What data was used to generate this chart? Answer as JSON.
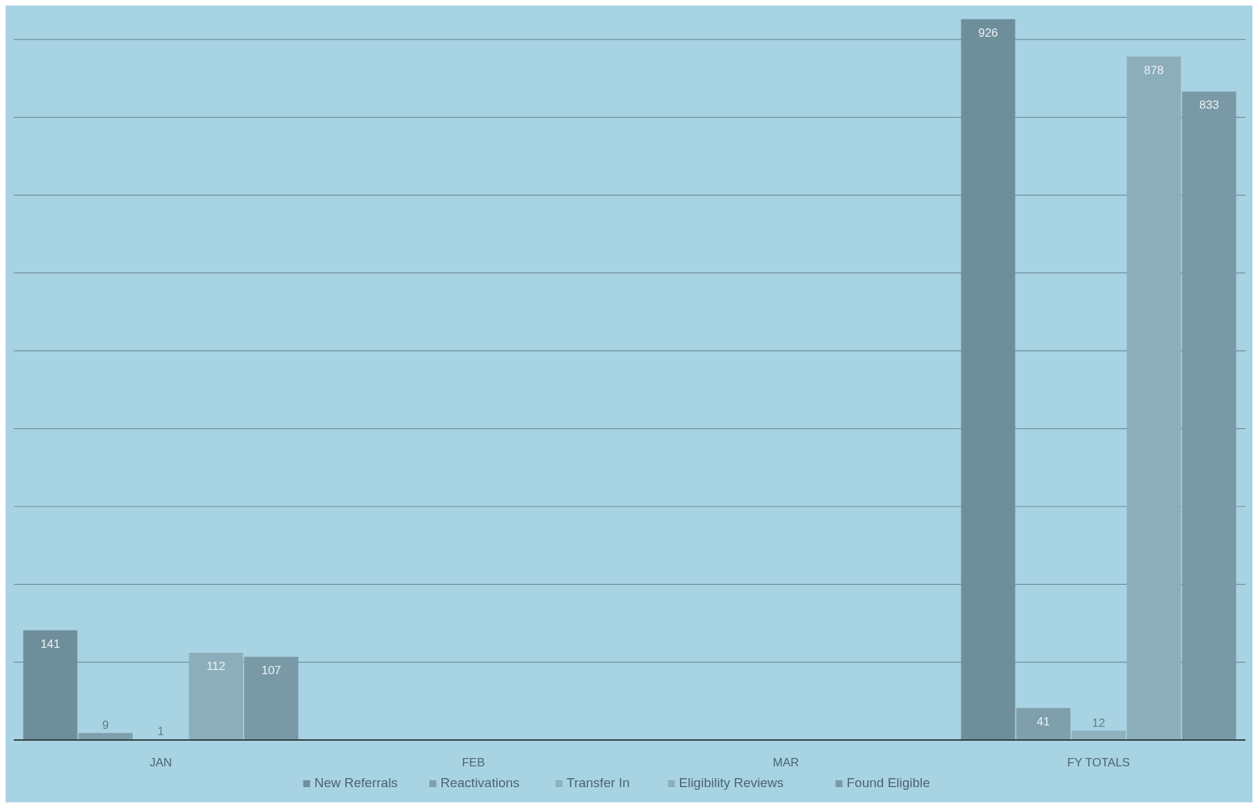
{
  "chart_data": {
    "type": "bar",
    "categories": [
      "JAN",
      "FEB",
      "MAR",
      "FY TOTALS"
    ],
    "series": [
      {
        "name": "New Referrals",
        "color": "#6f8e9b",
        "values": [
          141,
          null,
          null,
          926
        ]
      },
      {
        "name": "Reactivations",
        "color": "#7f9fac",
        "values": [
          9,
          null,
          null,
          41
        ]
      },
      {
        "name": "Transfer In",
        "color": "#8fb1be",
        "values": [
          1,
          null,
          null,
          12
        ]
      },
      {
        "name": "Eligibility Reviews",
        "color": "#8cadba",
        "values": [
          112,
          null,
          null,
          878
        ]
      },
      {
        "name": "Found Eligible",
        "color": "#7a99a6",
        "values": [
          107,
          null,
          null,
          833
        ]
      }
    ],
    "ylim": [
      0,
      940
    ],
    "yticks": [
      {
        "value": 0,
        "label": null
      },
      {
        "value": 100,
        "label": null
      },
      {
        "value": 200,
        "label": null
      },
      {
        "value": 300,
        "label": null
      },
      {
        "value": 400,
        "label": null
      },
      {
        "value": 500,
        "label": null
      },
      {
        "value": 600,
        "label": null
      },
      {
        "value": 700,
        "label": null
      },
      {
        "value": 800,
        "label": null
      },
      {
        "value": 900,
        "label": null
      }
    ],
    "tick_labels": "x",
    "grid": "y",
    "data_labels": true,
    "legend": "bottom"
  }
}
